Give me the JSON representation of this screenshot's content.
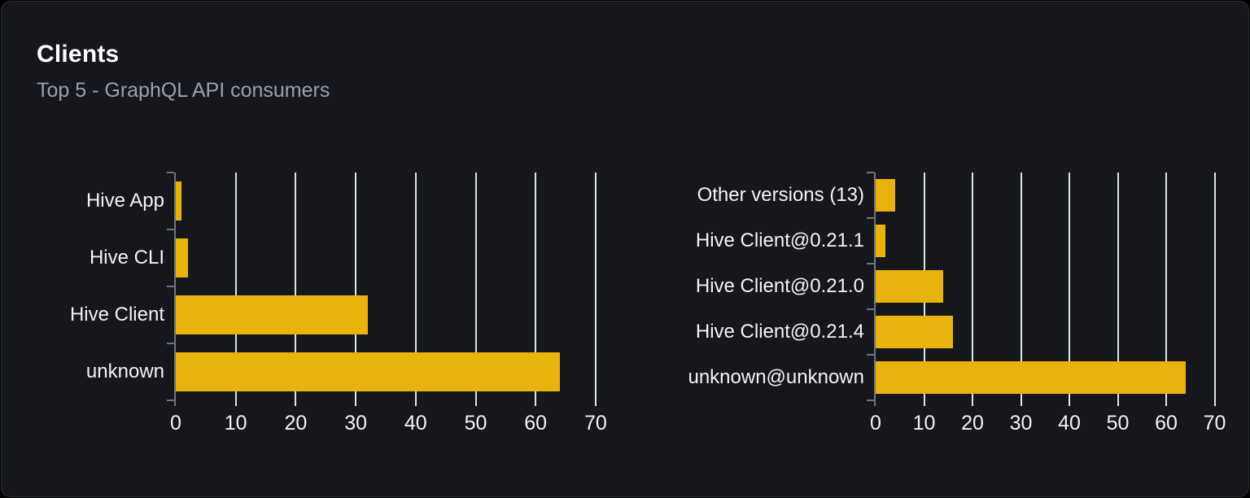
{
  "panel": {
    "title": "Clients",
    "subtitle": "Top 5 - GraphQL API consumers",
    "colors": {
      "panel_background": "#15171c",
      "panel_border": "#2b2e35",
      "bar": "#e9b30d",
      "gridline": "#dfe3e8",
      "axis": "#70757d",
      "label_text": "#f2f3f5",
      "subtitle_text": "#9aa1ab",
      "title_text": "#ffffff"
    }
  },
  "chart_data": [
    {
      "type": "bar",
      "orientation": "horizontal",
      "name": "clients-by-name",
      "title": "",
      "categories": [
        "Hive App",
        "Hive CLI",
        "Hive Client",
        "unknown"
      ],
      "values": [
        1,
        2,
        32,
        64
      ],
      "xlim": [
        0,
        70
      ],
      "x_ticks": [
        0,
        10,
        20,
        30,
        40,
        50,
        60,
        70
      ],
      "grid": true,
      "legend": "none"
    },
    {
      "type": "bar",
      "orientation": "horizontal",
      "name": "clients-by-version",
      "title": "",
      "categories": [
        "Other versions (13)",
        "Hive Client@0.21.1",
        "Hive Client@0.21.0",
        "Hive Client@0.21.4",
        "unknown@unknown"
      ],
      "values": [
        4,
        2,
        14,
        16,
        64
      ],
      "xlim": [
        0,
        70
      ],
      "x_ticks": [
        0,
        10,
        20,
        30,
        40,
        50,
        60,
        70
      ],
      "grid": true,
      "legend": "none"
    }
  ]
}
